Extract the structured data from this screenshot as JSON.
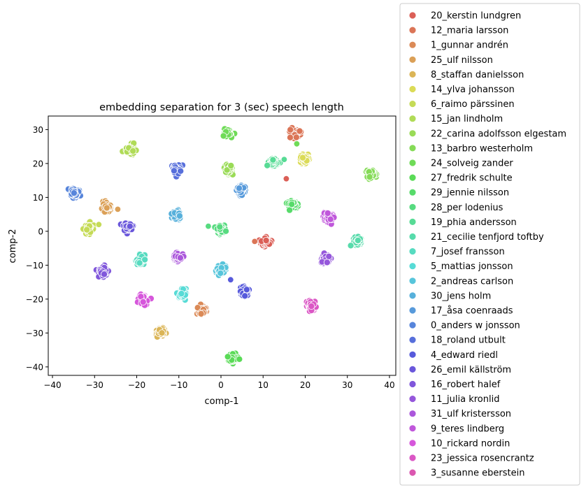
{
  "chart_data": {
    "type": "scatter",
    "title": "embedding separation for 3 (sec) speech length",
    "xlabel": "comp-1",
    "ylabel": "comp-2",
    "xlim": [
      -41,
      41.5
    ],
    "ylim": [
      -42.5,
      34
    ],
    "xticks": [
      -40,
      -30,
      -20,
      -10,
      0,
      10,
      20,
      30,
      40
    ],
    "yticks": [
      -40,
      -30,
      -20,
      -10,
      0,
      10,
      20,
      30
    ],
    "grid": false,
    "legend_position": "outside-right",
    "series": [
      {
        "name": "20_kerstin lundgren",
        "color": "#db5f57",
        "cluster": [
          10.5,
          -3.2
        ],
        "extra": [
          [
            15.5,
            15.5
          ],
          [
            18.5,
            28.0
          ],
          [
            17.0,
            28.0
          ]
        ]
      },
      {
        "name": "12_maria larsson",
        "color": "#db7557",
        "cluster": [
          17.5,
          28.8
        ],
        "extra": [
          [
            8.0,
            -3.0
          ]
        ]
      },
      {
        "name": "1_gunnar andrén",
        "color": "#db8a57",
        "cluster": [
          -4.5,
          -23.5
        ],
        "extra": []
      },
      {
        "name": "25_ulf nilsson",
        "color": "#dba057",
        "cluster": [
          -27.0,
          7.0
        ],
        "extra": [
          [
            -24.5,
            6.5
          ]
        ]
      },
      {
        "name": "8_staffan danielsson",
        "color": "#dbb557",
        "cluster": [
          -14.5,
          -29.8
        ],
        "extra": []
      },
      {
        "name": "14_ylva johansson",
        "color": "#dbdb57",
        "cluster": [
          19.8,
          21.5
        ],
        "extra": []
      },
      {
        "name": "6_raimo pärssinen",
        "color": "#c5db57",
        "cluster": [
          -31.5,
          0.7
        ],
        "extra": [
          [
            -29.0,
            2.0
          ]
        ]
      },
      {
        "name": "15_jan lindholm",
        "color": "#b0db57",
        "cluster": [
          -21.5,
          24.0
        ],
        "extra": []
      },
      {
        "name": "22_carina adolfsson elgestam",
        "color": "#9adb57",
        "cluster": [
          1.8,
          18.3
        ],
        "extra": []
      },
      {
        "name": "13_barbro westerholm",
        "color": "#85db57",
        "cluster": [
          35.8,
          16.7
        ],
        "extra": []
      },
      {
        "name": "24_solveig zander",
        "color": "#6fdb57",
        "cluster": [
          1.5,
          28.8
        ],
        "extra": [
          [
            18.0,
            25.8
          ]
        ]
      },
      {
        "name": "27_fredrik schulte",
        "color": "#5adb57",
        "cluster": [
          2.8,
          -37.2
        ],
        "extra": []
      },
      {
        "name": "29_jennie nilsson",
        "color": "#57db6a",
        "cluster": [
          17.0,
          7.8
        ],
        "extra": []
      },
      {
        "name": "28_per lodenius",
        "color": "#57db80",
        "cluster": [
          0.0,
          0.5
        ],
        "extra": [
          [
            -3.0,
            1.5
          ]
        ]
      },
      {
        "name": "19_phia andersson",
        "color": "#57db95",
        "cluster": [
          12.5,
          20.3
        ],
        "extra": [
          [
            15.0,
            21.2
          ]
        ]
      },
      {
        "name": "21_cecilie tenfjord toftby",
        "color": "#57dbab",
        "cluster": [
          32.3,
          -2.8
        ],
        "extra": []
      },
      {
        "name": "7_josef fransson",
        "color": "#57dbc0",
        "cluster": [
          -19.0,
          -8.5
        ],
        "extra": []
      },
      {
        "name": "5_mattias jonsson",
        "color": "#57dbd6",
        "cluster": [
          -9.0,
          -18.3
        ],
        "extra": []
      },
      {
        "name": "2_andreas carlson",
        "color": "#57c5db",
        "cluster": [
          0.0,
          -11.5
        ],
        "extra": []
      },
      {
        "name": "30_jens holm",
        "color": "#57b0db",
        "cluster": [
          -10.5,
          4.8
        ],
        "extra": []
      },
      {
        "name": "17_åsa coenraads",
        "color": "#579adb",
        "cluster": [
          4.8,
          12.0
        ],
        "extra": []
      },
      {
        "name": "0_anders w jonsson",
        "color": "#5785db",
        "cluster": [
          -34.8,
          11.2
        ],
        "extra": []
      },
      {
        "name": "18_roland utbult",
        "color": "#576fdb",
        "cluster": [
          -10.5,
          18.2
        ],
        "extra": []
      },
      {
        "name": "4_edward riedl",
        "color": "#575adb",
        "cluster": [
          5.5,
          -17.8
        ],
        "extra": [
          [
            2.3,
            -14.3
          ]
        ]
      },
      {
        "name": "26_emil källström",
        "color": "#6a57db",
        "cluster": [
          -22.3,
          1.2
        ],
        "extra": []
      },
      {
        "name": "16_robert halef",
        "color": "#8057db",
        "cluster": [
          -28.0,
          -12.0
        ],
        "extra": []
      },
      {
        "name": "11_julia kronlid",
        "color": "#9557db",
        "cluster": [
          24.8,
          -8.2
        ],
        "extra": []
      },
      {
        "name": "31_ulf kristersson",
        "color": "#ab57db",
        "cluster": [
          -10.3,
          -7.5
        ],
        "extra": []
      },
      {
        "name": "9_teres lindberg",
        "color": "#c057db",
        "cluster": [
          25.5,
          4.2
        ],
        "extra": []
      },
      {
        "name": "10_rickard nordin",
        "color": "#d657db",
        "cluster": [
          -18.5,
          -20.2
        ],
        "extra": []
      },
      {
        "name": "23_jessica rosencrantz",
        "color": "#db57c5",
        "cluster": [
          21.5,
          -22.0
        ],
        "extra": []
      },
      {
        "name": "3_susanne eberstein",
        "color": "#db57b0",
        "cluster": [],
        "extra": []
      }
    ]
  }
}
